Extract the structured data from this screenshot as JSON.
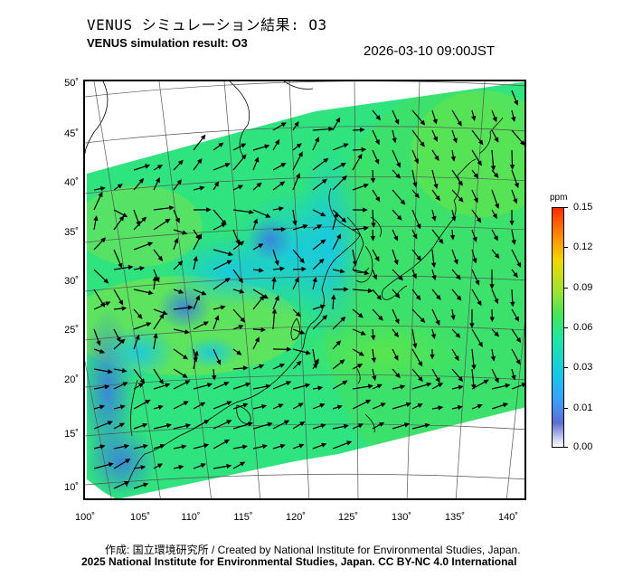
{
  "header": {
    "title_jp": "VENUS シミュレーション結果: O3",
    "title_en": "VENUS simulation result: O3",
    "timestamp": "2026-03-10 09:00JST"
  },
  "map": {
    "lat_labels": [
      "50˚",
      "45˚",
      "40˚",
      "35˚",
      "30˚",
      "25˚",
      "20˚",
      "15˚",
      "10˚"
    ],
    "lon_labels": [
      "100˚",
      "105˚",
      "110˚",
      "115˚",
      "120˚",
      "125˚",
      "130˚",
      "135˚",
      "140˚"
    ],
    "lat_range": [
      9,
      51
    ],
    "lon_range": [
      100,
      141
    ]
  },
  "colorbar": {
    "unit": "ppm",
    "labels": [
      "0.15",
      "0.12",
      "0.09",
      "0.06",
      "0.03",
      "0.01",
      "0.00"
    ]
  },
  "credits": {
    "line1": "作成: 国立環境研究所 / Created by National Institute for Environmental Studies, Japan.",
    "line2": "2025 National Institute for Environmental Studies, Japan. CC BY-NC 4.0 International"
  }
}
